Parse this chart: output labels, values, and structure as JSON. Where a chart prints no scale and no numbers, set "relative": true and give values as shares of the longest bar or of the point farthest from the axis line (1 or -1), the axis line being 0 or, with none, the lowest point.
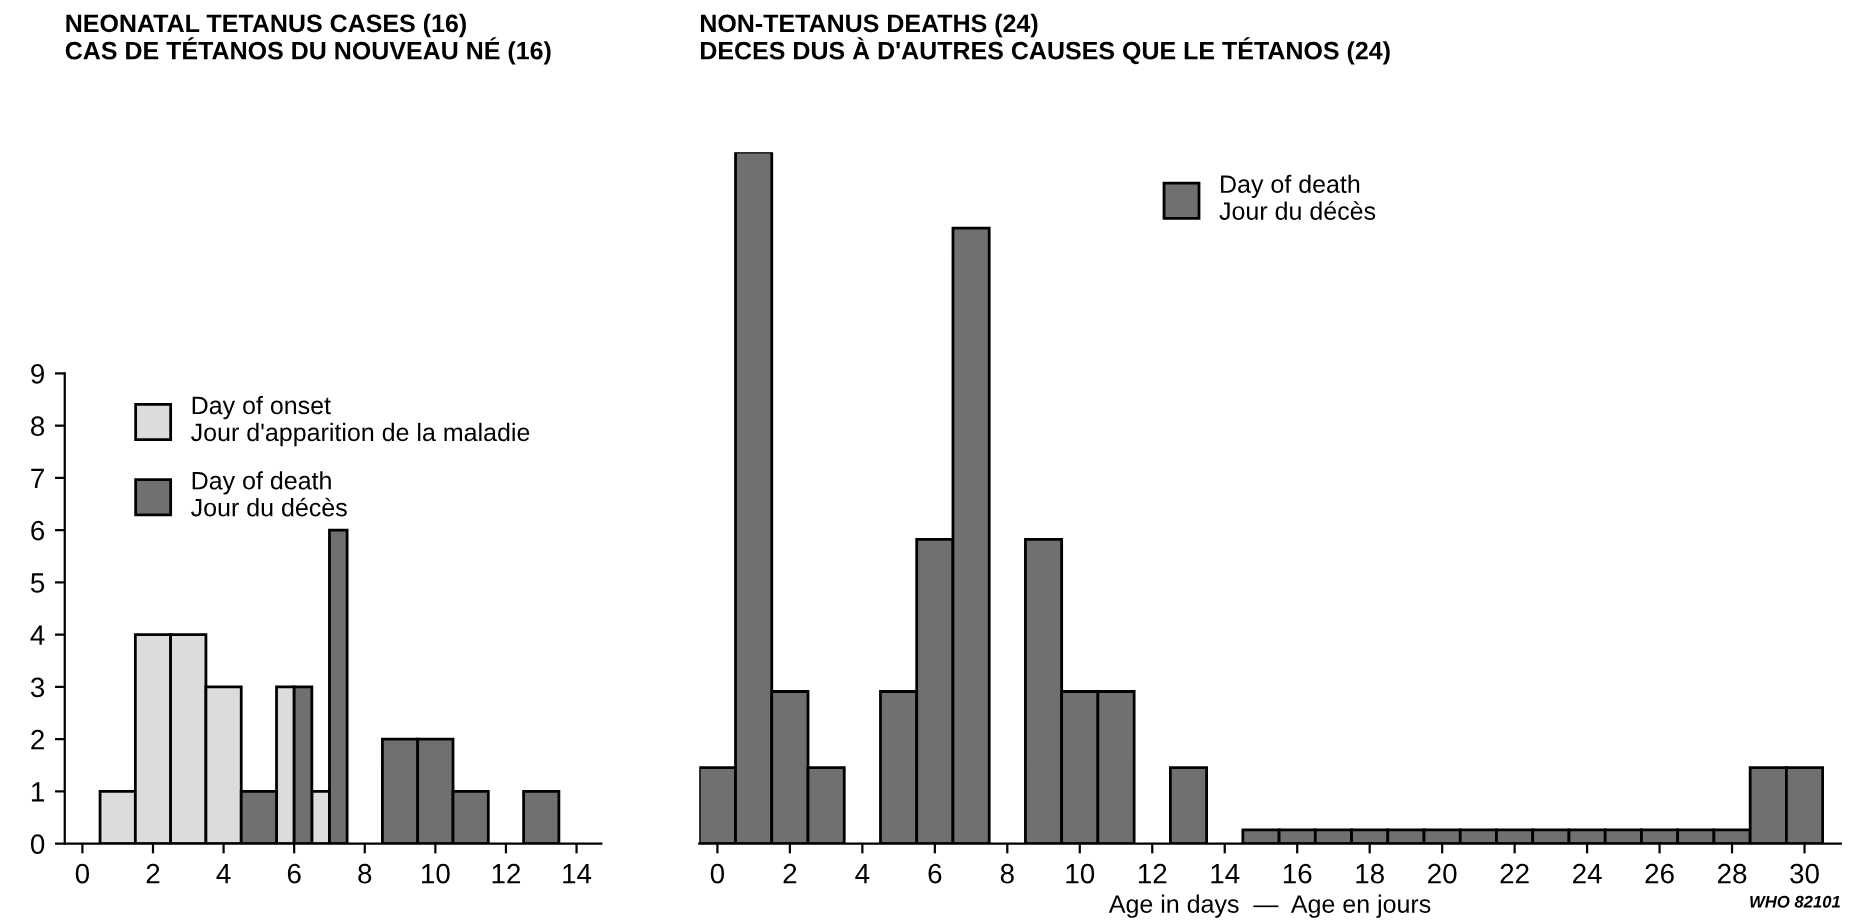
{
  "chart_data": [
    {
      "type": "bar",
      "title": "NEONATAL TETANUS CASES (16)\nCAS DE TÉTANOS DU NOUVEAU NÉ (16)",
      "x": [
        0,
        1,
        2,
        3,
        4,
        5,
        6,
        7,
        8,
        9,
        10,
        11,
        12,
        13,
        14
      ],
      "series": [
        {
          "name": "Day of onset\nJour d'apparition de la maladie",
          "color": "#dcdcdc",
          "values": [
            0,
            1,
            4,
            4,
            3,
            0,
            3,
            1,
            0,
            0,
            0,
            0,
            0,
            0,
            0
          ]
        },
        {
          "name": "Day of death\nJour du décès",
          "color": "#707070",
          "values": [
            0,
            0,
            0,
            0,
            0,
            1,
            3,
            6,
            0,
            2,
            2,
            1,
            0,
            1,
            0
          ]
        }
      ],
      "xlim": [
        -0.5,
        14.7
      ],
      "ylim": [
        0,
        9
      ],
      "xticks": [
        0,
        2,
        4,
        6,
        8,
        10,
        12,
        14
      ],
      "yticks": [
        0,
        1,
        2,
        3,
        4,
        5,
        6,
        7,
        8,
        9
      ],
      "grid": false,
      "legend": "top"
    },
    {
      "type": "bar",
      "title": "NON-TETANUS DEATHS (24)\nDECES DUS À D'AUTRES CAUSES QUE LE TÉTANOS (24)",
      "xlabel": "Age in days  —  Age en jours",
      "relative": true,
      "x": [
        0,
        1,
        2,
        3,
        4,
        5,
        6,
        7,
        8,
        9,
        10,
        11,
        12,
        13,
        14,
        15,
        16,
        17,
        18,
        19,
        20,
        21,
        22,
        23,
        24,
        25,
        26,
        27,
        28,
        29,
        30
      ],
      "series": [
        {
          "name": "Day of death\nJour du décès",
          "color": "#707070",
          "values": [
            0.11,
            1,
            0.22,
            0.11,
            0,
            0.22,
            0.44,
            0.89,
            0,
            0.44,
            0.22,
            0.22,
            0,
            0.11,
            0,
            0.02,
            0.02,
            0.02,
            0.02,
            0.02,
            0.02,
            0.02,
            0.02,
            0.02,
            0.02,
            0.02,
            0.02,
            0.02,
            0.02,
            0.11,
            0.11
          ]
        }
      ],
      "xlim": [
        -0.5,
        31
      ],
      "xticks": [
        0,
        2,
        4,
        6,
        8,
        10,
        12,
        14,
        16,
        18,
        20,
        22,
        24,
        26,
        28,
        30
      ],
      "grid": false,
      "legend": "top",
      "tick_labels": "x",
      "annotations": [
        "WHO 82101"
      ]
    }
  ]
}
